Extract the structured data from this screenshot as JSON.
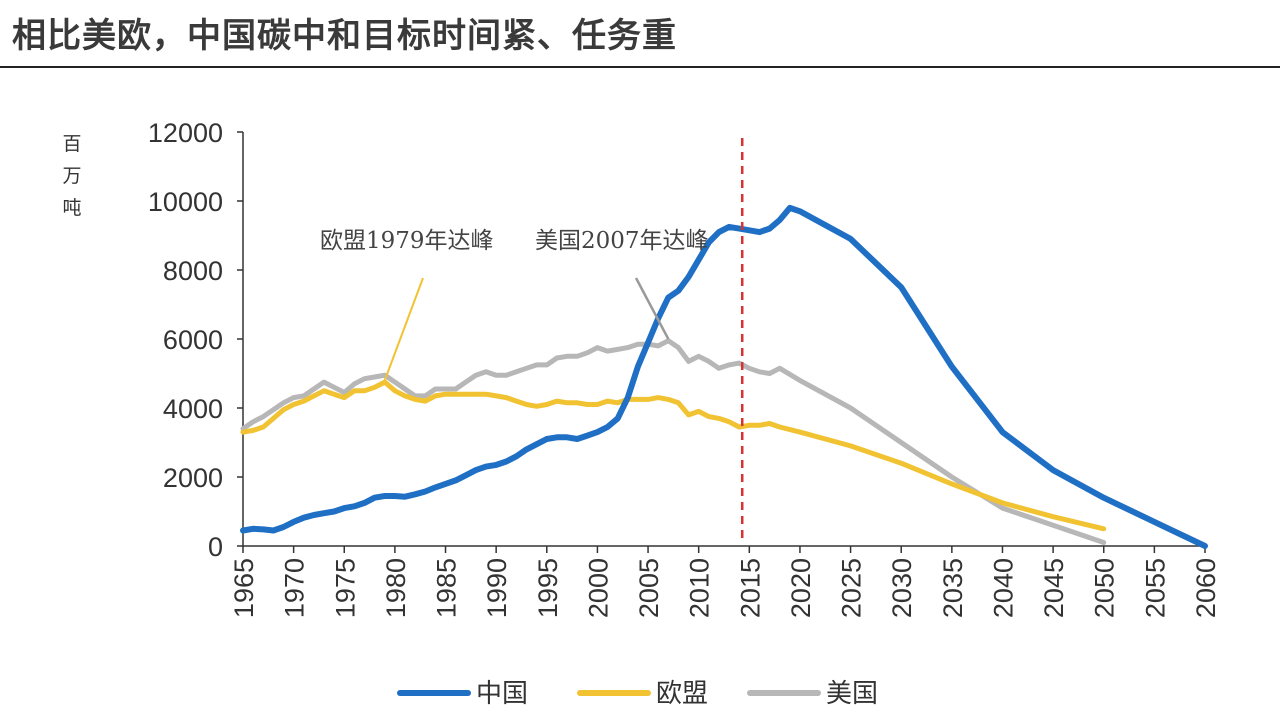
{
  "title": "相比美欧，中国碳中和目标时间紧、任务重",
  "colors": {
    "china": "#1f6fc5",
    "eu": "#f1c232",
    "us": "#b7b7b7",
    "marker": "#d63232"
  },
  "chart_data": {
    "type": "line",
    "title": "相比美欧，中国碳中和目标时间紧、任务重",
    "ylabel": "百万吨",
    "ylabel_chars": [
      "百",
      "万",
      "吨"
    ],
    "xlim": [
      1965,
      2060
    ],
    "ylim": [
      0,
      12000
    ],
    "xticks": [
      "1965",
      "1970",
      "1975",
      "1980",
      "1985",
      "1990",
      "1995",
      "2000",
      "2005",
      "2010",
      "2015",
      "2020",
      "2025",
      "2030",
      "2035",
      "2040",
      "2045",
      "2050",
      "2055",
      "2060"
    ],
    "yticks": [
      "0",
      "2000",
      "4000",
      "6000",
      "8000",
      "10000",
      "12000"
    ],
    "grid": false,
    "legend_position": "bottom",
    "reference_line": {
      "x": 2014.3,
      "style": "dashed"
    },
    "annotations": [
      {
        "text": "欧盟1979年达峰",
        "x": 1979,
        "y": 4800
      },
      {
        "text": "美国2007年达峰",
        "x": 2007,
        "y": 6000
      }
    ],
    "series": [
      {
        "name": "中国",
        "key": "china",
        "points": [
          [
            1965,
            450
          ],
          [
            1966,
            500
          ],
          [
            1967,
            480
          ],
          [
            1968,
            450
          ],
          [
            1969,
            550
          ],
          [
            1970,
            700
          ],
          [
            1971,
            820
          ],
          [
            1972,
            900
          ],
          [
            1973,
            950
          ],
          [
            1974,
            1000
          ],
          [
            1975,
            1100
          ],
          [
            1976,
            1150
          ],
          [
            1977,
            1250
          ],
          [
            1978,
            1400
          ],
          [
            1979,
            1450
          ],
          [
            1980,
            1450
          ],
          [
            1981,
            1430
          ],
          [
            1982,
            1500
          ],
          [
            1983,
            1580
          ],
          [
            1984,
            1700
          ],
          [
            1985,
            1800
          ],
          [
            1986,
            1900
          ],
          [
            1987,
            2050
          ],
          [
            1988,
            2200
          ],
          [
            1989,
            2300
          ],
          [
            1990,
            2350
          ],
          [
            1991,
            2450
          ],
          [
            1992,
            2600
          ],
          [
            1993,
            2800
          ],
          [
            1994,
            2950
          ],
          [
            1995,
            3100
          ],
          [
            1996,
            3150
          ],
          [
            1997,
            3150
          ],
          [
            1998,
            3100
          ],
          [
            1999,
            3200
          ],
          [
            2000,
            3300
          ],
          [
            2001,
            3450
          ],
          [
            2002,
            3700
          ],
          [
            2003,
            4300
          ],
          [
            2004,
            5200
          ],
          [
            2005,
            5900
          ],
          [
            2006,
            6600
          ],
          [
            2007,
            7200
          ],
          [
            2008,
            7400
          ],
          [
            2009,
            7800
          ],
          [
            2010,
            8300
          ],
          [
            2011,
            8800
          ],
          [
            2012,
            9100
          ],
          [
            2013,
            9250
          ],
          [
            2014,
            9200
          ],
          [
            2015,
            9150
          ],
          [
            2016,
            9100
          ],
          [
            2017,
            9200
          ],
          [
            2018,
            9450
          ],
          [
            2019,
            9800
          ],
          [
            2020,
            9700
          ],
          [
            2025,
            8900
          ],
          [
            2030,
            7500
          ],
          [
            2035,
            5200
          ],
          [
            2040,
            3300
          ],
          [
            2045,
            2200
          ],
          [
            2050,
            1400
          ],
          [
            2055,
            700
          ],
          [
            2060,
            0
          ]
        ]
      },
      {
        "name": "欧盟",
        "key": "eu",
        "points": [
          [
            1965,
            3300
          ],
          [
            1966,
            3350
          ],
          [
            1967,
            3450
          ],
          [
            1968,
            3700
          ],
          [
            1969,
            3950
          ],
          [
            1970,
            4100
          ],
          [
            1971,
            4200
          ],
          [
            1972,
            4350
          ],
          [
            1973,
            4500
          ],
          [
            1974,
            4400
          ],
          [
            1975,
            4300
          ],
          [
            1976,
            4500
          ],
          [
            1977,
            4500
          ],
          [
            1978,
            4600
          ],
          [
            1979,
            4750
          ],
          [
            1980,
            4500
          ],
          [
            1981,
            4350
          ],
          [
            1982,
            4250
          ],
          [
            1983,
            4200
          ],
          [
            1984,
            4350
          ],
          [
            1985,
            4400
          ],
          [
            1986,
            4400
          ],
          [
            1987,
            4400
          ],
          [
            1988,
            4400
          ],
          [
            1989,
            4400
          ],
          [
            1990,
            4350
          ],
          [
            1991,
            4300
          ],
          [
            1992,
            4200
          ],
          [
            1993,
            4100
          ],
          [
            1994,
            4050
          ],
          [
            1995,
            4100
          ],
          [
            1996,
            4200
          ],
          [
            1997,
            4150
          ],
          [
            1998,
            4150
          ],
          [
            1999,
            4100
          ],
          [
            2000,
            4100
          ],
          [
            2001,
            4200
          ],
          [
            2002,
            4150
          ],
          [
            2003,
            4250
          ],
          [
            2004,
            4250
          ],
          [
            2005,
            4250
          ],
          [
            2006,
            4300
          ],
          [
            2007,
            4250
          ],
          [
            2008,
            4150
          ],
          [
            2009,
            3800
          ],
          [
            2010,
            3900
          ],
          [
            2011,
            3750
          ],
          [
            2012,
            3700
          ],
          [
            2013,
            3600
          ],
          [
            2014,
            3450
          ],
          [
            2015,
            3500
          ],
          [
            2016,
            3500
          ],
          [
            2017,
            3550
          ],
          [
            2018,
            3450
          ],
          [
            2020,
            3300
          ],
          [
            2025,
            2900
          ],
          [
            2030,
            2400
          ],
          [
            2035,
            1800
          ],
          [
            2040,
            1250
          ],
          [
            2045,
            850
          ],
          [
            2050,
            500
          ]
        ]
      },
      {
        "name": "美国",
        "key": "us",
        "points": [
          [
            1965,
            3400
          ],
          [
            1966,
            3600
          ],
          [
            1967,
            3750
          ],
          [
            1968,
            3950
          ],
          [
            1969,
            4150
          ],
          [
            1970,
            4300
          ],
          [
            1971,
            4350
          ],
          [
            1972,
            4550
          ],
          [
            1973,
            4750
          ],
          [
            1974,
            4600
          ],
          [
            1975,
            4450
          ],
          [
            1976,
            4700
          ],
          [
            1977,
            4850
          ],
          [
            1978,
            4900
          ],
          [
            1979,
            4950
          ],
          [
            1980,
            4750
          ],
          [
            1981,
            4550
          ],
          [
            1982,
            4350
          ],
          [
            1983,
            4350
          ],
          [
            1984,
            4550
          ],
          [
            1985,
            4550
          ],
          [
            1986,
            4550
          ],
          [
            1987,
            4750
          ],
          [
            1988,
            4950
          ],
          [
            1989,
            5050
          ],
          [
            1990,
            4950
          ],
          [
            1991,
            4950
          ],
          [
            1992,
            5050
          ],
          [
            1993,
            5150
          ],
          [
            1994,
            5250
          ],
          [
            1995,
            5250
          ],
          [
            1996,
            5450
          ],
          [
            1997,
            5500
          ],
          [
            1998,
            5500
          ],
          [
            1999,
            5600
          ],
          [
            2000,
            5750
          ],
          [
            2001,
            5650
          ],
          [
            2002,
            5700
          ],
          [
            2003,
            5750
          ],
          [
            2004,
            5850
          ],
          [
            2005,
            5850
          ],
          [
            2006,
            5800
          ],
          [
            2007,
            5950
          ],
          [
            2008,
            5750
          ],
          [
            2009,
            5350
          ],
          [
            2010,
            5500
          ],
          [
            2011,
            5350
          ],
          [
            2012,
            5150
          ],
          [
            2013,
            5250
          ],
          [
            2014,
            5300
          ],
          [
            2015,
            5150
          ],
          [
            2016,
            5050
          ],
          [
            2017,
            5000
          ],
          [
            2018,
            5150
          ],
          [
            2020,
            4800
          ],
          [
            2025,
            4000
          ],
          [
            2030,
            3000
          ],
          [
            2035,
            2000
          ],
          [
            2040,
            1100
          ],
          [
            2045,
            600
          ],
          [
            2050,
            100
          ]
        ]
      }
    ]
  }
}
